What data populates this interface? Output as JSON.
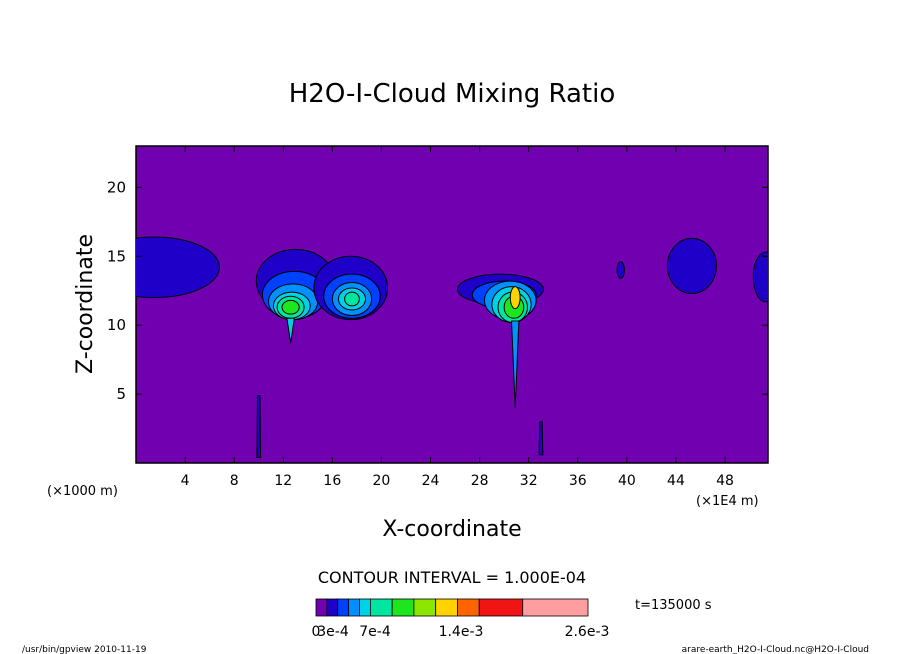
{
  "chart_data": {
    "type": "contour",
    "title": "H2O-I-Cloud Mixing Ratio",
    "xlabel": "X-coordinate",
    "ylabel": "Z-coordinate",
    "x_unit_left": "(×1000 m)",
    "x_unit_right": "(×1E4 m)",
    "xlim": [
      0,
      51.5
    ],
    "ylim": [
      0,
      23
    ],
    "x_ticks": [
      4,
      8,
      12,
      16,
      20,
      24,
      28,
      32,
      36,
      40,
      44,
      48
    ],
    "y_ticks": [
      5,
      10,
      15,
      20
    ],
    "contour_interval_text": "CONTOUR INTERVAL = 1.000E-04",
    "time_text": "t=135000 s",
    "background_color": "#7000b0",
    "colorbar": {
      "colors": [
        "#7000b0",
        "#1e00c8",
        "#0040ff",
        "#0090ff",
        "#00d2e6",
        "#00e6a0",
        "#1ee61e",
        "#8ce600",
        "#ffd200",
        "#ff6400",
        "#f01414",
        "#ff9ea0"
      ],
      "label_values": [
        "0",
        "3e-4",
        "7e-4",
        "1.4e-3",
        "2.6e-3"
      ]
    },
    "features": [
      {
        "x": 2.5,
        "z": 14.2,
        "max_level": 1
      },
      {
        "x": 13,
        "z": 12,
        "max_level": 6
      },
      {
        "x": 17.5,
        "z": 12,
        "max_level": 5
      },
      {
        "x": 30.5,
        "z": 12,
        "max_level": 8
      },
      {
        "x": 39.5,
        "z": 14,
        "max_level": 1
      },
      {
        "x": 45.3,
        "z": 14.3,
        "max_level": 1
      },
      {
        "x": 51,
        "z": 13.5,
        "max_level": 1
      },
      {
        "x": 10,
        "z": 2.5,
        "max_level": 2
      },
      {
        "x": 31,
        "z": 7,
        "max_level": 3
      }
    ]
  },
  "footer": {
    "left": "/usr/bin/gpview   2010-11-19",
    "right": "arare-earth_H2O-I-Cloud.nc@H2O-I-Cloud"
  }
}
